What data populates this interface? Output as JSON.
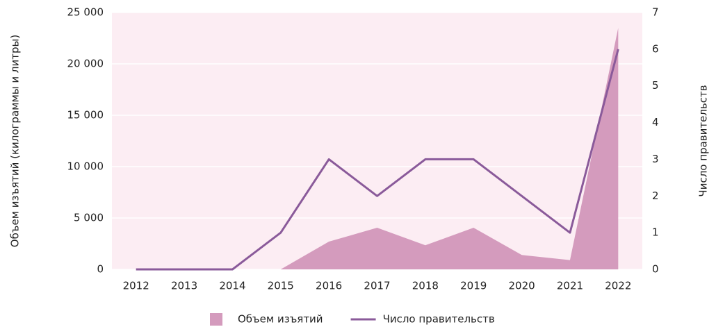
{
  "chart_data": {
    "type": "area-line",
    "categories": [
      "2012",
      "2013",
      "2014",
      "2015",
      "2016",
      "2017",
      "2018",
      "2019",
      "2020",
      "2021",
      "2022"
    ],
    "series": [
      {
        "name": "Объем изъятий",
        "color": "#d49bbd",
        "type": "area",
        "values": [
          0,
          0,
          0,
          0,
          2700,
          4050,
          2350,
          4050,
          1400,
          900,
          23500
        ]
      },
      {
        "name": "Число правительств",
        "color": "#8a5a9a",
        "type": "line",
        "axis": "y2",
        "values": [
          0,
          0,
          0,
          1,
          3,
          2,
          3,
          3,
          2,
          1,
          6
        ]
      }
    ],
    "ylabel": "Объем изъятий (килограммы и литры)",
    "y2label": "Число правительств",
    "ylim": [
      0,
      25000
    ],
    "yticks": [
      0,
      {
        "value": 5000,
        "label": "5 000"
      },
      {
        "value": 10000,
        "label": "10 000"
      },
      {
        "value": 15000,
        "label": "15 000"
      },
      {
        "value": 20000,
        "label": "20 000"
      },
      {
        "value": 25000,
        "label": "25 000"
      }
    ],
    "y2lim": [
      0,
      7
    ],
    "y2ticks": [
      0,
      1,
      2,
      3,
      4,
      5,
      6,
      7
    ],
    "grid": true,
    "legend": "bottom",
    "background": "#fcedf3"
  }
}
